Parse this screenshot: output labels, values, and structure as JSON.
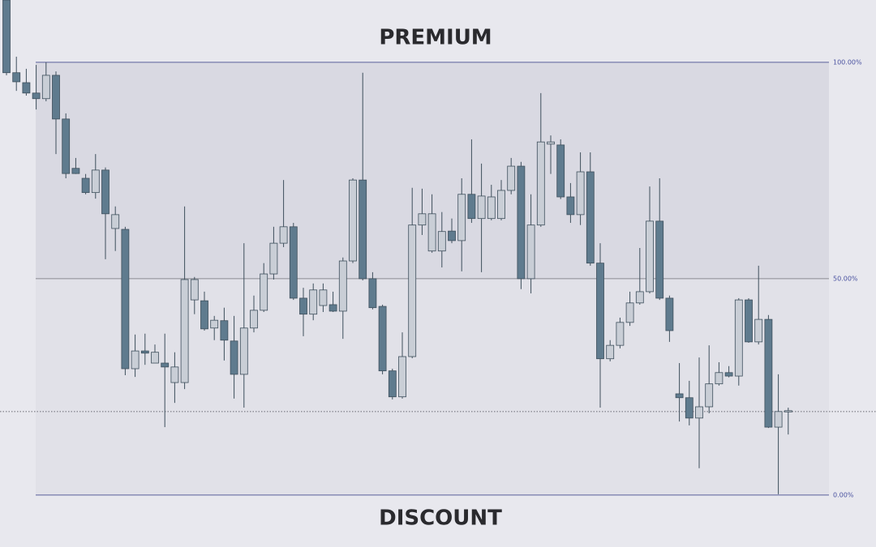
{
  "chart_data": {
    "type": "candlestick",
    "title": "PREMIUM",
    "subtitle": "DISCOUNT",
    "ylim": [
      -12.0,
      114.4
    ],
    "yticks": [
      {
        "value": 0,
        "label": "0.00%"
      },
      {
        "value": 50,
        "label": "50.00%"
      },
      {
        "value": 100,
        "label": "100.00%"
      }
    ],
    "price_line": 19.3,
    "up_color": "#c9ced6",
    "down_color": "#5f7b8e",
    "line_color": "#5a5f9a",
    "open": [
      114.4,
      97.6,
      95.3,
      92.9,
      91.6,
      97.0,
      86.9,
      75.5,
      73.2,
      69.9,
      75.1,
      61.6,
      61.4,
      29.2,
      33.3,
      30.5,
      30.5,
      26.0,
      26.0,
      45.1,
      44.9,
      38.6,
      40.3,
      35.6,
      27.9,
      38.6,
      42.7,
      51.1,
      58.2,
      62.0,
      45.5,
      41.8,
      43.8,
      44.0,
      42.5,
      54.1,
      72.8,
      50.0,
      43.6,
      28.7,
      22.7,
      32.0,
      62.4,
      56.4,
      56.4,
      61.0,
      58.8,
      69.5,
      63.9,
      63.9,
      63.9,
      70.4,
      76.0,
      50.0,
      62.4,
      81.1,
      80.9,
      68.9,
      64.8,
      74.7,
      53.6,
      31.5,
      34.6,
      39.9,
      44.4,
      47.0,
      63.3,
      45.5,
      23.4,
      22.5,
      17.8,
      20.4,
      25.7,
      28.3,
      27.5,
      45.1,
      35.4,
      40.6,
      15.7,
      19.3
    ],
    "high": [
      114.4,
      101.3,
      98.5,
      99.4,
      100.0,
      97.9,
      88.2,
      77.9,
      74.2,
      78.8,
      75.7,
      66.7,
      62.0,
      37.1,
      37.3,
      34.8,
      37.3,
      33.0,
      66.7,
      50.4,
      47.0,
      41.4,
      43.3,
      41.4,
      58.2,
      46.1,
      53.6,
      62.0,
      72.8,
      62.9,
      47.9,
      48.9,
      48.9,
      47.0,
      54.9,
      73.2,
      97.6,
      51.5,
      44.0,
      29.2,
      37.6,
      71.0,
      70.8,
      69.5,
      65.4,
      63.9,
      73.2,
      82.2,
      76.6,
      71.7,
      72.8,
      77.9,
      77.0,
      69.5,
      92.9,
      83.1,
      82.2,
      72.1,
      79.2,
      79.2,
      58.2,
      35.8,
      41.0,
      47.0,
      57.1,
      71.3,
      73.2,
      46.1,
      30.5,
      26.4,
      31.8,
      34.6,
      30.7,
      29.8,
      45.5,
      45.5,
      53.0,
      41.6,
      27.9,
      20.2
    ],
    "low": [
      97.0,
      93.4,
      92.3,
      89.1,
      91.0,
      78.8,
      73.2,
      74.2,
      69.5,
      68.5,
      54.5,
      56.4,
      27.7,
      27.3,
      30.1,
      30.5,
      15.7,
      21.3,
      24.5,
      41.8,
      38.0,
      35.8,
      31.1,
      22.3,
      20.2,
      37.6,
      42.3,
      49.8,
      57.3,
      45.1,
      36.7,
      40.4,
      42.3,
      42.3,
      36.1,
      53.6,
      49.6,
      42.9,
      27.9,
      22.1,
      22.3,
      31.6,
      60.1,
      56.0,
      52.6,
      58.2,
      51.7,
      62.9,
      51.5,
      63.5,
      63.5,
      69.5,
      47.6,
      46.6,
      62.0,
      74.2,
      68.4,
      62.9,
      62.4,
      53.0,
      20.2,
      30.9,
      33.9,
      39.1,
      44.0,
      46.6,
      45.1,
      35.4,
      17.0,
      16.1,
      6.2,
      18.9,
      25.3,
      27.2,
      25.3,
      35.2,
      34.8,
      15.5,
      0.2,
      14.0
    ],
    "close": [
      97.6,
      95.5,
      92.9,
      91.6,
      97.0,
      86.9,
      74.3,
      74.3,
      69.9,
      75.1,
      65.0,
      64.8,
      29.2,
      33.3,
      32.8,
      33.0,
      29.6,
      29.6,
      49.8,
      49.8,
      38.4,
      40.4,
      35.8,
      27.9,
      38.6,
      42.7,
      51.1,
      58.2,
      62.0,
      45.5,
      41.8,
      47.4,
      47.4,
      42.5,
      54.1,
      72.8,
      50.0,
      43.3,
      28.7,
      22.7,
      32.0,
      62.4,
      65.0,
      65.0,
      60.9,
      58.8,
      69.5,
      63.9,
      69.1,
      68.9,
      70.4,
      76.0,
      50.0,
      62.4,
      81.6,
      81.6,
      68.9,
      64.8,
      74.7,
      53.6,
      31.5,
      34.6,
      39.9,
      44.4,
      47.0,
      63.3,
      45.5,
      38.0,
      22.5,
      17.8,
      20.4,
      25.7,
      28.3,
      27.5,
      45.1,
      35.4,
      40.6,
      15.7,
      19.3,
      19.5
    ]
  }
}
